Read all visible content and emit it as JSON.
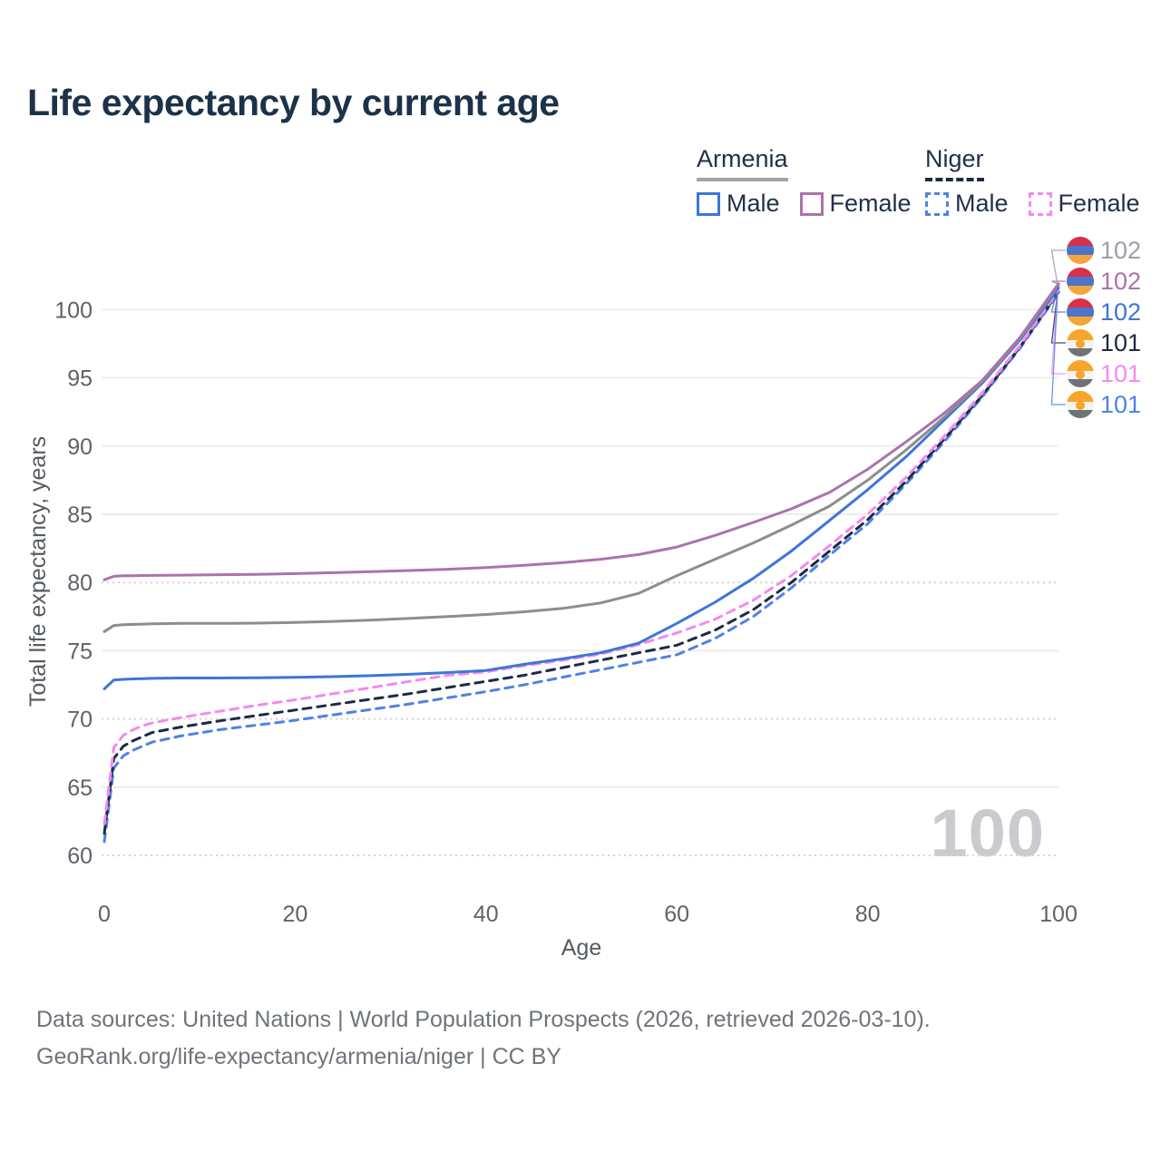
{
  "title": "Life expectancy by current age",
  "age_indicator": "100",
  "legend": {
    "groups": [
      {
        "country": "Armenia",
        "style": "solid",
        "line": {
          "color": "#a3a3a3",
          "style": "solid"
        },
        "items": [
          {
            "label": "Male",
            "color": "#3d76d6"
          },
          {
            "label": "Female",
            "color": "#ab73ab"
          }
        ]
      },
      {
        "country": "Niger",
        "style": "dashed",
        "line": {
          "color": "#1d2b42",
          "style": "dashed"
        },
        "items": [
          {
            "label": "Male",
            "color": "#4e82e6"
          },
          {
            "label": "Female",
            "color": "#f489ef"
          }
        ]
      }
    ]
  },
  "flags": {
    "armenia": {
      "stripes": [
        "#d7314a",
        "#4d74c9",
        "#f2a53a"
      ]
    },
    "niger": {
      "stripes": [
        "#f7a62b",
        "#f3f3f1",
        "#6e7377"
      ],
      "dot": "#f7a62b"
    }
  },
  "end_labels": [
    {
      "value": "102",
      "flag": "armenia",
      "color": "#9aa0a6",
      "series_index": 4,
      "series": "Armenia Both sexes"
    },
    {
      "value": "102",
      "flag": "armenia",
      "color": "#ab73ab",
      "series_index": 5,
      "series": "Armenia Female"
    },
    {
      "value": "102",
      "flag": "armenia",
      "color": "#3d76d6",
      "series_index": 3,
      "series": "Armenia Male"
    },
    {
      "value": "101",
      "flag": "niger",
      "color": "#1d2b42",
      "series_index": 1,
      "series": "Niger Both sexes"
    },
    {
      "value": "101",
      "flag": "niger",
      "color": "#f489ef",
      "series_index": 2,
      "series": "Niger Female"
    },
    {
      "value": "101",
      "flag": "niger",
      "color": "#4e82e6",
      "series_index": 0,
      "series": "Niger Male"
    }
  ],
  "footer": {
    "line1": "Data sources: United Nations | World Population Prospects (2026, retrieved 2026-03-10).",
    "line2": "GeoRank.org/life-expectancy/armenia/niger | CC BY"
  },
  "chart_data": {
    "type": "line",
    "title": "Life expectancy by current age",
    "xlabel": "Age",
    "ylabel": "Total life expectancy, years",
    "xlim": [
      0,
      100
    ],
    "ylim": [
      60,
      105
    ],
    "xticks": [
      0,
      20,
      40,
      60,
      80,
      100
    ],
    "yticks": [
      60,
      65,
      70,
      75,
      80,
      85,
      90,
      95,
      100
    ],
    "dotted_gridlines": [
      60,
      70,
      80
    ],
    "grid": true,
    "legend_position": "top-right",
    "x": [
      0,
      1,
      2,
      3,
      4,
      5,
      8,
      12,
      16,
      20,
      24,
      28,
      32,
      36,
      40,
      44,
      48,
      52,
      56,
      60,
      64,
      68,
      72,
      76,
      80,
      84,
      88,
      92,
      96,
      100
    ],
    "series": [
      {
        "name": "Niger Male",
        "color": "#4e82e6",
        "dash": true,
        "values": [
          61.0,
          66.4,
          67.3,
          67.7,
          68.0,
          68.3,
          68.75,
          69.2,
          69.55,
          69.9,
          70.3,
          70.7,
          71.1,
          71.55,
          72.0,
          72.5,
          73.05,
          73.6,
          74.15,
          74.7,
          75.9,
          77.5,
          79.6,
          82.0,
          84.3,
          87.2,
          90.3,
          93.6,
          97.2,
          101.2
        ]
      },
      {
        "name": "Niger Both sexes",
        "color": "#1d2b42",
        "dash": true,
        "values": [
          61.6,
          67.1,
          68.0,
          68.4,
          68.7,
          69.0,
          69.4,
          69.85,
          70.25,
          70.65,
          71.05,
          71.45,
          71.85,
          72.3,
          72.75,
          73.2,
          73.75,
          74.3,
          74.85,
          75.4,
          76.5,
          78.0,
          80.0,
          82.3,
          84.6,
          87.4,
          90.5,
          93.7,
          97.3,
          101.3
        ]
      },
      {
        "name": "Niger Female",
        "color": "#f489ef",
        "dash": true,
        "values": [
          62.3,
          67.9,
          68.8,
          69.2,
          69.5,
          69.7,
          70.1,
          70.55,
          71.0,
          71.4,
          71.85,
          72.3,
          72.75,
          73.2,
          73.45,
          73.9,
          74.3,
          74.75,
          75.45,
          76.3,
          77.3,
          78.7,
          80.5,
          82.7,
          85.0,
          87.7,
          90.7,
          93.9,
          97.4,
          101.4
        ]
      },
      {
        "name": "Armenia Male",
        "color": "#3d76d6",
        "dash": false,
        "values": [
          72.2,
          72.85,
          72.9,
          72.93,
          72.95,
          72.97,
          73.0,
          73.0,
          73.02,
          73.05,
          73.1,
          73.17,
          73.27,
          73.4,
          73.55,
          74.0,
          74.4,
          74.85,
          75.55,
          77.0,
          78.55,
          80.3,
          82.3,
          84.55,
          86.8,
          89.2,
          91.9,
          94.6,
          97.8,
          101.6
        ]
      },
      {
        "name": "Armenia Both sexes",
        "color": "#8d8d8d",
        "dash": false,
        "values": [
          76.4,
          76.85,
          76.9,
          76.93,
          76.95,
          76.97,
          77.0,
          77.0,
          77.02,
          77.07,
          77.15,
          77.25,
          77.37,
          77.5,
          77.65,
          77.85,
          78.1,
          78.5,
          79.2,
          80.5,
          81.7,
          82.9,
          84.2,
          85.6,
          87.5,
          89.7,
          92.1,
          94.7,
          97.9,
          101.8
        ]
      },
      {
        "name": "Armenia Female",
        "color": "#ab73ab",
        "dash": false,
        "values": [
          80.2,
          80.45,
          80.5,
          80.5,
          80.51,
          80.52,
          80.54,
          80.57,
          80.6,
          80.65,
          80.72,
          80.8,
          80.88,
          80.97,
          81.1,
          81.26,
          81.45,
          81.7,
          82.05,
          82.6,
          83.45,
          84.4,
          85.4,
          86.6,
          88.3,
          90.3,
          92.4,
          94.8,
          98.0,
          101.9
        ]
      }
    ]
  }
}
